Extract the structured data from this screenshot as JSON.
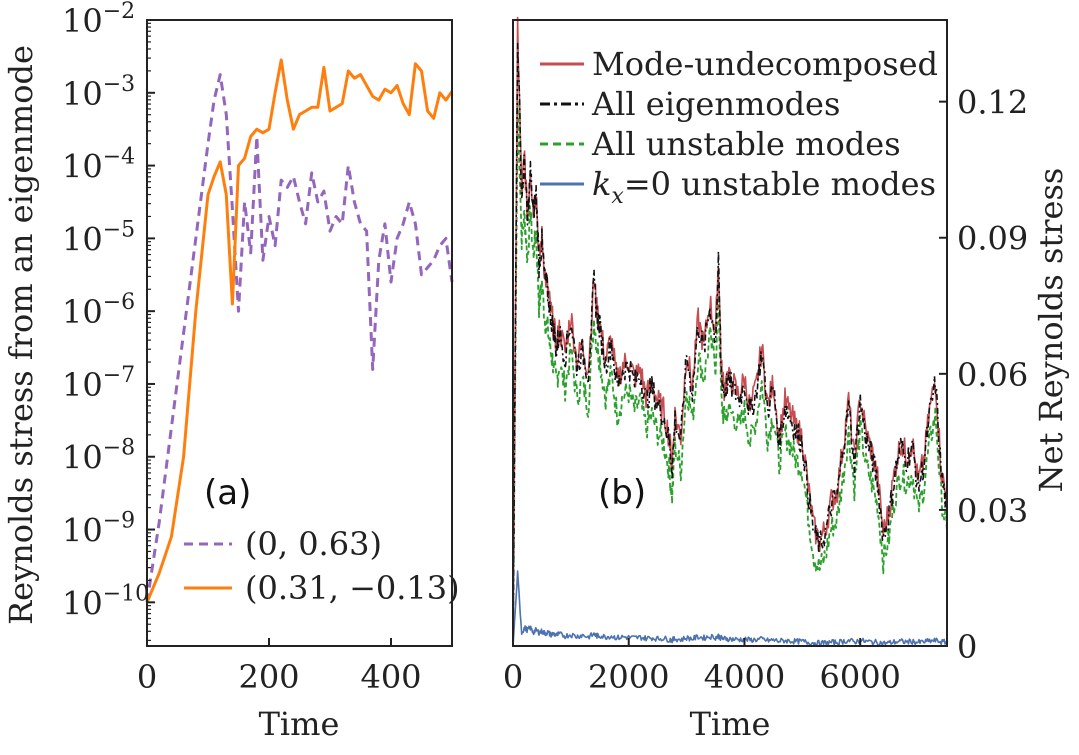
{
  "chart_data": [
    {
      "type": "line",
      "panel_label": "(a)",
      "xlabel": "Time",
      "ylabel": "Reynolds stress from an eigenmode",
      "yscale": "log",
      "xlim": [
        0,
        500
      ],
      "ylim_exp": [
        -10.6,
        -2
      ],
      "xticks": [
        0,
        200,
        400
      ],
      "xtick_labels": [
        "0",
        "200",
        "400"
      ],
      "yticks_exp": [
        -10,
        -9,
        -8,
        -7,
        -6,
        -5,
        -4,
        -3,
        -2
      ],
      "ytick_base": "10",
      "ytick_sup": [
        "−10",
        "−9",
        "−8",
        "−7",
        "−6",
        "−5",
        "−4",
        "−3",
        "−2"
      ],
      "series": [
        {
          "name": "(0, 0.63)",
          "color": "#9467bd",
          "dash": "dashed",
          "x": [
            0,
            20,
            40,
            60,
            80,
            100,
            110,
            120,
            130,
            140,
            150,
            160,
            170,
            180,
            190,
            200,
            210,
            220,
            230,
            240,
            250,
            260,
            270,
            280,
            290,
            300,
            310,
            320,
            330,
            340,
            350,
            360,
            370,
            380,
            390,
            400,
            410,
            420,
            430,
            440,
            450,
            460,
            470,
            480,
            490,
            500
          ],
          "y_exp": [
            -10.0,
            -8.9,
            -7.6,
            -6.3,
            -5.0,
            -3.7,
            -3.1,
            -2.75,
            -3.3,
            -4.6,
            -6.0,
            -4.5,
            -5.2,
            -3.6,
            -5.3,
            -4.7,
            -5.1,
            -4.2,
            -4.3,
            -4.15,
            -4.5,
            -4.8,
            -4.1,
            -4.5,
            -4.35,
            -4.9,
            -4.7,
            -4.8,
            -4.0,
            -4.5,
            -4.8,
            -4.9,
            -6.8,
            -5.3,
            -4.8,
            -5.6,
            -5.0,
            -4.8,
            -4.5,
            -4.8,
            -5.5,
            -5.4,
            -5.3,
            -5.1,
            -5.0,
            -5.6
          ]
        },
        {
          "name": "(0.31, −0.13)",
          "color": "#ff7f0e",
          "dash": "solid",
          "x": [
            0,
            20,
            40,
            60,
            80,
            100,
            110,
            120,
            130,
            140,
            150,
            160,
            170,
            180,
            190,
            200,
            210,
            220,
            230,
            240,
            250,
            260,
            270,
            280,
            290,
            300,
            310,
            320,
            330,
            340,
            350,
            360,
            370,
            380,
            390,
            400,
            410,
            420,
            430,
            440,
            450,
            460,
            470,
            480,
            490,
            500
          ],
          "y_exp": [
            -10.0,
            -9.6,
            -9.1,
            -8.0,
            -6.0,
            -4.4,
            -4.15,
            -3.95,
            -4.4,
            -5.9,
            -4.0,
            -3.9,
            -3.6,
            -3.5,
            -3.55,
            -3.5,
            -3.0,
            -2.55,
            -3.1,
            -3.5,
            -3.3,
            -3.25,
            -3.2,
            -3.2,
            -2.65,
            -3.25,
            -3.2,
            -3.15,
            -2.7,
            -2.8,
            -2.75,
            -2.9,
            -3.05,
            -3.1,
            -2.95,
            -3.0,
            -2.9,
            -3.15,
            -3.3,
            -2.6,
            -2.7,
            -3.25,
            -3.35,
            -3.0,
            -3.1,
            -2.98
          ]
        }
      ],
      "legend": {
        "location": "lower-right"
      }
    },
    {
      "type": "line",
      "panel_label": "(b)",
      "xlabel": "Time",
      "ylabel": "Net Reynolds stress",
      "yaxis_side": "right",
      "xlim": [
        0,
        7500
      ],
      "ylim": [
        0,
        0.138
      ],
      "xticks": [
        0,
        2000,
        4000,
        6000
      ],
      "xtick_labels": [
        "0",
        "2000",
        "4000",
        "6000"
      ],
      "yticks": [
        0,
        0.03,
        0.06,
        0.09,
        0.12
      ],
      "ytick_labels": [
        "0",
        "0.03",
        "0.06",
        "0.09",
        "0.12"
      ],
      "x": [
        0,
        80,
        150,
        200,
        250,
        300,
        350,
        400,
        450,
        500,
        550,
        600,
        650,
        700,
        750,
        800,
        900,
        1000,
        1100,
        1200,
        1300,
        1400,
        1450,
        1500,
        1600,
        1700,
        1800,
        1900,
        2000,
        2100,
        2200,
        2300,
        2400,
        2500,
        2600,
        2700,
        2750,
        2800,
        2900,
        3000,
        3100,
        3200,
        3300,
        3400,
        3500,
        3550,
        3600,
        3650,
        3700,
        3800,
        3900,
        4000,
        4100,
        4200,
        4300,
        4400,
        4500,
        4600,
        4700,
        4800,
        4900,
        5000,
        5100,
        5200,
        5300,
        5400,
        5500,
        5600,
        5700,
        5800,
        5900,
        6000,
        6100,
        6200,
        6300,
        6400,
        6500,
        6600,
        6700,
        6800,
        6900,
        7000,
        7100,
        7200,
        7300,
        7400,
        7500
      ],
      "series": [
        {
          "name": "Mode-undecomposed",
          "color": "#c44e52",
          "dash": "solid",
          "y": [
            0.0,
            0.137,
            0.1,
            0.108,
            0.094,
            0.106,
            0.096,
            0.101,
            0.085,
            0.09,
            0.082,
            0.079,
            0.074,
            0.071,
            0.066,
            0.07,
            0.065,
            0.073,
            0.063,
            0.066,
            0.061,
            0.081,
            0.074,
            0.071,
            0.063,
            0.068,
            0.058,
            0.062,
            0.063,
            0.059,
            0.061,
            0.055,
            0.058,
            0.054,
            0.052,
            0.046,
            0.04,
            0.051,
            0.046,
            0.065,
            0.057,
            0.072,
            0.066,
            0.076,
            0.069,
            0.085,
            0.061,
            0.057,
            0.059,
            0.058,
            0.055,
            0.059,
            0.052,
            0.057,
            0.066,
            0.053,
            0.058,
            0.046,
            0.054,
            0.051,
            0.048,
            0.046,
            0.035,
            0.026,
            0.023,
            0.026,
            0.032,
            0.034,
            0.044,
            0.054,
            0.041,
            0.055,
            0.047,
            0.043,
            0.037,
            0.025,
            0.03,
            0.039,
            0.045,
            0.042,
            0.045,
            0.036,
            0.041,
            0.052,
            0.059,
            0.039,
            0.031
          ]
        },
        {
          "name": "All eigenmodes",
          "color": "#111111",
          "dash": "dashdot",
          "y": [
            0.0,
            0.135,
            0.099,
            0.107,
            0.093,
            0.105,
            0.095,
            0.1,
            0.084,
            0.089,
            0.081,
            0.078,
            0.073,
            0.07,
            0.065,
            0.069,
            0.064,
            0.072,
            0.062,
            0.065,
            0.06,
            0.08,
            0.073,
            0.07,
            0.062,
            0.067,
            0.057,
            0.061,
            0.062,
            0.058,
            0.06,
            0.054,
            0.057,
            0.053,
            0.051,
            0.045,
            0.039,
            0.05,
            0.045,
            0.064,
            0.056,
            0.071,
            0.065,
            0.075,
            0.068,
            0.084,
            0.06,
            0.056,
            0.058,
            0.057,
            0.054,
            0.058,
            0.051,
            0.056,
            0.065,
            0.052,
            0.057,
            0.045,
            0.053,
            0.05,
            0.047,
            0.045,
            0.034,
            0.025,
            0.022,
            0.025,
            0.031,
            0.033,
            0.043,
            0.053,
            0.04,
            0.054,
            0.046,
            0.042,
            0.036,
            0.024,
            0.029,
            0.038,
            0.044,
            0.041,
            0.044,
            0.035,
            0.04,
            0.051,
            0.058,
            0.038,
            0.03
          ]
        },
        {
          "name": "All unstable modes",
          "color": "#2ca02c",
          "dash": "dashed",
          "y": [
            0.0,
            0.12,
            0.09,
            0.095,
            0.085,
            0.096,
            0.086,
            0.091,
            0.075,
            0.08,
            0.072,
            0.07,
            0.065,
            0.062,
            0.058,
            0.062,
            0.057,
            0.065,
            0.055,
            0.058,
            0.053,
            0.072,
            0.066,
            0.063,
            0.055,
            0.06,
            0.051,
            0.055,
            0.056,
            0.052,
            0.054,
            0.048,
            0.051,
            0.047,
            0.045,
            0.039,
            0.033,
            0.044,
            0.039,
            0.057,
            0.05,
            0.064,
            0.059,
            0.068,
            0.062,
            0.077,
            0.054,
            0.05,
            0.052,
            0.051,
            0.048,
            0.052,
            0.045,
            0.05,
            0.058,
            0.046,
            0.051,
            0.04,
            0.047,
            0.044,
            0.041,
            0.039,
            0.029,
            0.02,
            0.017,
            0.02,
            0.026,
            0.028,
            0.037,
            0.047,
            0.035,
            0.048,
            0.04,
            0.036,
            0.031,
            0.019,
            0.024,
            0.033,
            0.038,
            0.036,
            0.038,
            0.03,
            0.035,
            0.045,
            0.051,
            0.033,
            0.025
          ]
        },
        {
          "name": "=0 unstable modes",
          "math_prefix": "k",
          "math_sub": "x",
          "color": "#4c72b0",
          "dash": "solid",
          "y": [
            0.0,
            0.016,
            0.003,
            0.004,
            0.0035,
            0.004,
            0.003,
            0.0035,
            0.003,
            0.0032,
            0.0028,
            0.003,
            0.0025,
            0.0027,
            0.0024,
            0.0026,
            0.0022,
            0.0025,
            0.0021,
            0.0024,
            0.002,
            0.0026,
            0.0022,
            0.0023,
            0.002,
            0.0022,
            0.0018,
            0.002,
            0.0019,
            0.0018,
            0.0019,
            0.0017,
            0.0018,
            0.0016,
            0.0017,
            0.0014,
            0.0013,
            0.0016,
            0.0014,
            0.0018,
            0.0016,
            0.002,
            0.0018,
            0.0021,
            0.0019,
            0.0022,
            0.0017,
            0.0016,
            0.0016,
            0.0015,
            0.0014,
            0.0015,
            0.0013,
            0.0014,
            0.0015,
            0.0012,
            0.0013,
            0.0011,
            0.0012,
            0.0011,
            0.001,
            0.001,
            0.0008,
            0.0007,
            0.0006,
            0.0007,
            0.0008,
            0.0008,
            0.001,
            0.0012,
            0.0009,
            0.0012,
            0.001,
            0.0009,
            0.0008,
            0.0006,
            0.0007,
            0.0009,
            0.001,
            0.0009,
            0.001,
            0.0008,
            0.0009,
            0.0011,
            0.0012,
            0.0009,
            0.0008
          ]
        }
      ],
      "legend": {
        "location": "upper-right"
      }
    }
  ]
}
